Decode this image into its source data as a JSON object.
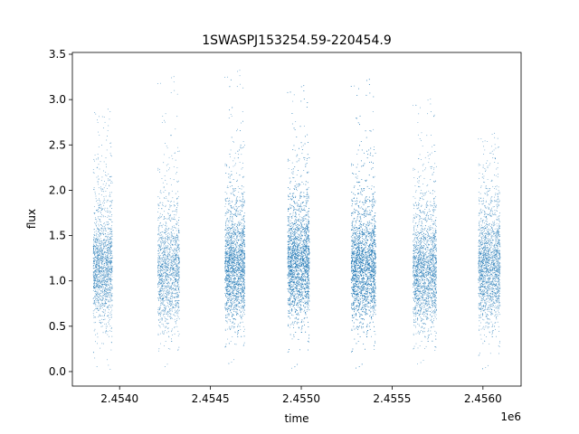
{
  "chart_data": {
    "type": "scatter",
    "title": "1SWASPJ153254.59-220454.9",
    "xlabel": "time",
    "ylabel": "flux",
    "x_offset_label": "1e6",
    "xlim": [
      2453740,
      2456210
    ],
    "ylim": [
      -0.16,
      3.52
    ],
    "x_ticks": [
      2454000,
      2454500,
      2455000,
      2455500,
      2456000
    ],
    "x_tick_labels": [
      "2.4540",
      "2.4545",
      "2.4550",
      "2.4555",
      "2.4560"
    ],
    "y_ticks": [
      0.0,
      0.5,
      1.0,
      1.5,
      2.0,
      2.5,
      3.0,
      3.5
    ],
    "y_tick_labels": [
      "0.0",
      "0.5",
      "1.0",
      "1.5",
      "2.0",
      "2.5",
      "3.0",
      "3.5"
    ],
    "grid": false,
    "marker_color": "#1f77b4",
    "seasons": [
      {
        "x_start": 2453855,
        "x_end": 2453960,
        "flux_center": 1.1,
        "flux_min": 0.02,
        "flux_max": 2.93,
        "points": 1600
      },
      {
        "x_start": 2454210,
        "x_end": 2454330,
        "flux_center": 1.05,
        "flux_min": 0.0,
        "flux_max": 3.28,
        "points": 1500
      },
      {
        "x_start": 2454580,
        "x_end": 2454690,
        "flux_center": 1.1,
        "flux_min": 0.05,
        "flux_max": 3.35,
        "points": 2600
      },
      {
        "x_start": 2454925,
        "x_end": 2455045,
        "flux_center": 1.15,
        "flux_min": 0.0,
        "flux_max": 3.18,
        "points": 3200
      },
      {
        "x_start": 2455275,
        "x_end": 2455410,
        "flux_center": 1.1,
        "flux_min": 0.0,
        "flux_max": 3.25,
        "points": 3600
      },
      {
        "x_start": 2455615,
        "x_end": 2455745,
        "flux_center": 1.05,
        "flux_min": 0.05,
        "flux_max": 3.03,
        "points": 2200
      },
      {
        "x_start": 2455975,
        "x_end": 2456095,
        "flux_center": 1.1,
        "flux_min": 0.0,
        "flux_max": 2.65,
        "points": 2000
      }
    ]
  }
}
